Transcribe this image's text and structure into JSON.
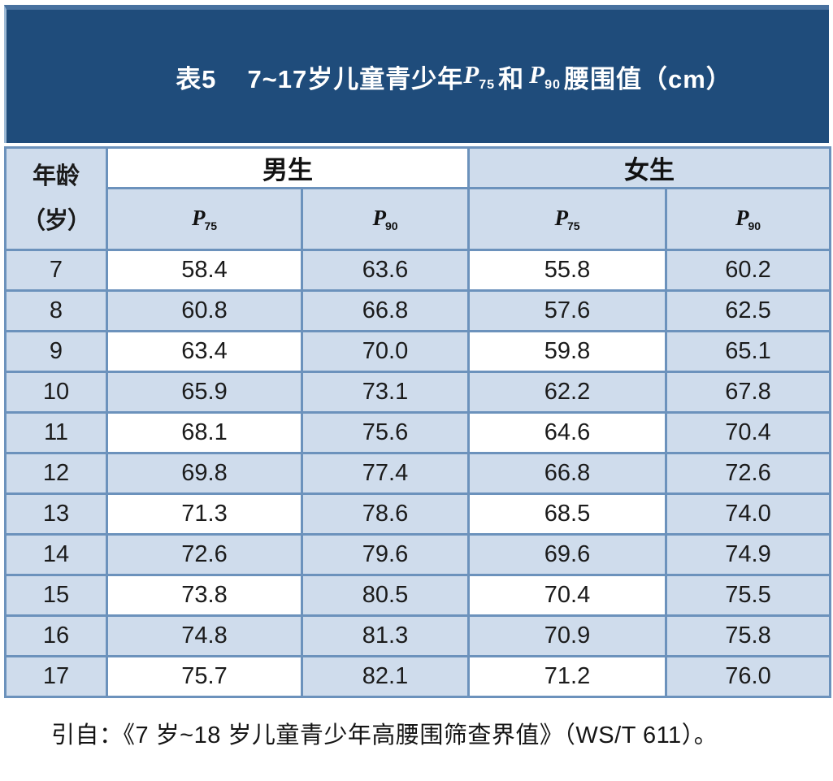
{
  "title": {
    "table_number": "表5",
    "main": "7~17岁儿童青少年",
    "p1": {
      "base": "P",
      "sub": "75"
    },
    "conjunction": "和",
    "p2": {
      "base": "P",
      "sub": "90"
    },
    "suffix": "腰围值（cm）"
  },
  "colors": {
    "title_bg": "#1F4C7B",
    "title_bg_top_edge": "#48719F",
    "cell_light_blue": "#CFDCEC",
    "cell_white": "#FFFFFF",
    "border_blue": "#6C92BC",
    "title_text": "#FFFFFF"
  },
  "table": {
    "age_header_line1": "年龄",
    "age_header_line2": "（岁）",
    "male_header": "男生",
    "female_header": "女生",
    "p75": {
      "base": "P",
      "sub": "75"
    },
    "p90": {
      "base": "P",
      "sub": "90"
    },
    "rows": [
      {
        "age": "7",
        "m75": "58.4",
        "m90": "63.6",
        "f75": "55.8",
        "f90": "60.2"
      },
      {
        "age": "8",
        "m75": "60.8",
        "m90": "66.8",
        "f75": "57.6",
        "f90": "62.5"
      },
      {
        "age": "9",
        "m75": "63.4",
        "m90": "70.0",
        "f75": "59.8",
        "f90": "65.1"
      },
      {
        "age": "10",
        "m75": "65.9",
        "m90": "73.1",
        "f75": "62.2",
        "f90": "67.8"
      },
      {
        "age": "11",
        "m75": "68.1",
        "m90": "75.6",
        "f75": "64.6",
        "f90": "70.4"
      },
      {
        "age": "12",
        "m75": "69.8",
        "m90": "77.4",
        "f75": "66.8",
        "f90": "72.6"
      },
      {
        "age": "13",
        "m75": "71.3",
        "m90": "78.6",
        "f75": "68.5",
        "f90": "74.0"
      },
      {
        "age": "14",
        "m75": "72.6",
        "m90": "79.6",
        "f75": "69.6",
        "f90": "74.9"
      },
      {
        "age": "15",
        "m75": "73.8",
        "m90": "80.5",
        "f75": "70.4",
        "f90": "75.5"
      },
      {
        "age": "16",
        "m75": "74.8",
        "m90": "81.3",
        "f75": "70.9",
        "f90": "75.8"
      },
      {
        "age": "17",
        "m75": "75.7",
        "m90": "82.1",
        "f75": "71.2",
        "f90": "76.0"
      }
    ]
  },
  "footer": {
    "citation": "引自：《7 岁~18 岁儿童青少年高腰围筛查界值》（WS/T 611）。"
  }
}
